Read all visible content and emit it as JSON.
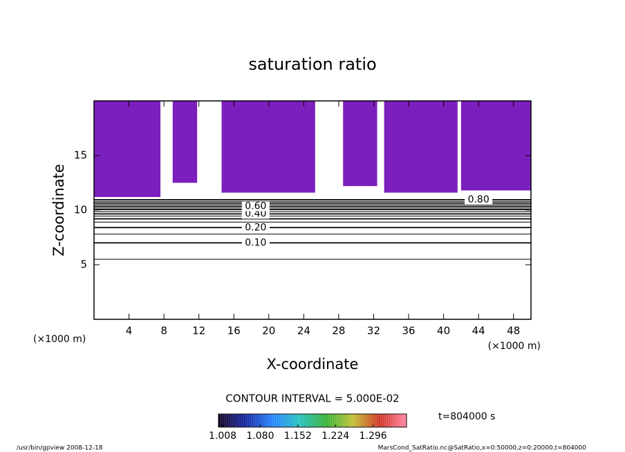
{
  "chart_data": {
    "type": "contour",
    "title": "saturation ratio",
    "xlabel": "X-coordinate",
    "ylabel": "Z-coordinate",
    "x_unit_left": "(×1000 m)",
    "x_unit_right": "(×1000 m)",
    "xlim": [
      0,
      50
    ],
    "ylim": [
      0,
      20
    ],
    "xticks": [
      4,
      8,
      12,
      16,
      20,
      24,
      28,
      32,
      36,
      40,
      44,
      48
    ],
    "yticks": [
      5,
      10,
      15
    ],
    "contour_interval_text": "CONTOUR INTERVAL = 5.000E-02",
    "contours": {
      "levels": [
        0.05,
        0.1,
        0.15,
        0.2,
        0.25,
        0.3,
        0.35,
        0.4,
        0.45,
        0.5,
        0.55,
        0.6,
        0.65,
        0.7,
        0.75,
        0.8
      ],
      "z": [
        5.5,
        7.0,
        7.8,
        8.4,
        8.9,
        9.2,
        9.45,
        9.65,
        9.85,
        10.05,
        10.2,
        10.35,
        10.5,
        10.65,
        10.8,
        10.95
      ],
      "color": "#000000"
    },
    "contour_labels": {
      "values": [
        0.1,
        0.2,
        0.4,
        0.6,
        0.8
      ],
      "value_labels": [
        "0.10",
        "0.20",
        "0.40",
        "0.60",
        "0.80"
      ]
    },
    "shading": {
      "color": "#7b1fbd",
      "x0": [
        0,
        9,
        14.6,
        28.5,
        33.2,
        42
      ],
      "x1": [
        7.6,
        11.8,
        25.3,
        32.4,
        41.6,
        50
      ],
      "z0": [
        11.2,
        12.5,
        11.6,
        12.2,
        11.6,
        11.8
      ],
      "z1": [
        20,
        20,
        20,
        20,
        20,
        20
      ]
    },
    "colorbar": {
      "clim": [
        1.0,
        1.36
      ],
      "ticks": [
        1.008,
        {
          "value": 1.08,
          "label": "1.080"
        },
        1.152,
        1.224,
        1.296
      ],
      "colors": [
        "#100020",
        "#1020a0",
        "#2080ff",
        "#20c0c0",
        "#30b030",
        "#c0c030",
        "#d03020",
        "#ff80a0"
      ]
    },
    "time_label": "t=804000 s",
    "footer_left": "/usr/bin/gpview  2008-12-18",
    "footer_right": "MarsCond_SatRatio.nc@SatRatio,x=0:50000,z=0:20000,t=804000"
  }
}
